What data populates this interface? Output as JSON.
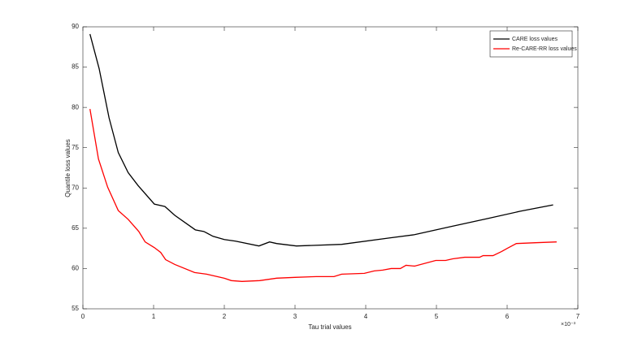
{
  "chart_data": {
    "type": "line",
    "xlabel": "Tau trial values",
    "ylabel": "Quantile loss values",
    "x_multiplier": "×10⁻³",
    "xlim": [
      0,
      7
    ],
    "xticks": [
      0,
      1,
      2,
      3,
      4,
      5,
      6,
      7
    ],
    "ylim": [
      55,
      90
    ],
    "yticks": [
      55,
      60,
      65,
      70,
      75,
      80,
      85,
      90
    ],
    "legend": "top-right",
    "series": [
      {
        "name": "CARE loss values",
        "color": "#000000",
        "x": [
          0.1,
          0.23,
          0.37,
          0.5,
          0.64,
          0.78,
          1.01,
          1.16,
          1.3,
          1.59,
          1.71,
          1.84,
          2.0,
          2.16,
          2.49,
          2.64,
          2.74,
          3.02,
          3.66,
          4.34,
          4.69,
          5.2,
          5.72,
          6.18,
          6.65
        ],
        "values": [
          89.1,
          84.8,
          78.7,
          74.4,
          71.9,
          70.3,
          68.0,
          67.7,
          66.6,
          64.8,
          64.6,
          64.0,
          63.6,
          63.4,
          62.8,
          63.3,
          63.1,
          62.8,
          63.0,
          63.8,
          64.2,
          65.2,
          66.2,
          67.1,
          67.9
        ]
      },
      {
        "name": "Re-CARE-RR loss values",
        "color": "#ff0000",
        "x": [
          0.1,
          0.22,
          0.35,
          0.5,
          0.64,
          0.79,
          0.88,
          1.01,
          1.1,
          1.17,
          1.3,
          1.58,
          1.75,
          2.0,
          2.1,
          2.25,
          2.5,
          2.74,
          3.0,
          3.3,
          3.55,
          3.66,
          3.98,
          4.12,
          4.24,
          4.36,
          4.49,
          4.57,
          4.69,
          4.99,
          5.13,
          5.23,
          5.4,
          5.61,
          5.66,
          5.8,
          5.92,
          6.0,
          6.13,
          6.4,
          6.7
        ],
        "values": [
          79.8,
          73.6,
          70.1,
          67.2,
          66.1,
          64.6,
          63.3,
          62.6,
          62.0,
          61.1,
          60.5,
          59.5,
          59.3,
          58.8,
          58.5,
          58.4,
          58.5,
          58.8,
          58.9,
          59.0,
          59.0,
          59.3,
          59.4,
          59.7,
          59.8,
          60.0,
          60.0,
          60.4,
          60.3,
          61.0,
          61.0,
          61.2,
          61.4,
          61.4,
          61.6,
          61.6,
          62.1,
          62.5,
          63.1,
          63.2,
          63.3
        ]
      }
    ]
  }
}
